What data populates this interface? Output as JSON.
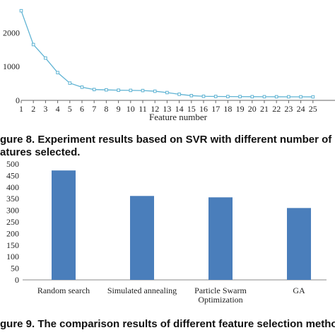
{
  "captions": {
    "fig8_line1": "gure 8. Experiment results based on SVR with different number of",
    "fig8_line2": "atures selected.",
    "fig9": "gure 9. The comparison results of different feature selection methods"
  },
  "chart_data": [
    {
      "type": "line",
      "title": "",
      "xlabel": "Feature number",
      "ylabel": "",
      "x": [
        1,
        2,
        3,
        4,
        5,
        6,
        7,
        8,
        9,
        10,
        11,
        12,
        13,
        14,
        15,
        16,
        17,
        18,
        19,
        20,
        21,
        22,
        23,
        24,
        25
      ],
      "y_ticks": [
        0,
        1000,
        2000
      ],
      "ylim": [
        0,
        2800
      ],
      "series": [
        {
          "values": [
            2650,
            1650,
            1250,
            820,
            510,
            390,
            320,
            310,
            300,
            295,
            290,
            270,
            230,
            180,
            140,
            120,
            115,
            112,
            110,
            108,
            107,
            106,
            105,
            104,
            103
          ]
        }
      ],
      "color": "#5fb3d3",
      "grid": false
    },
    {
      "type": "bar",
      "title": "",
      "xlabel": "",
      "ylabel": "",
      "categories": [
        "Random search",
        "Simulated annealing",
        [
          "Particle Swarm",
          "Optimization"
        ],
        "GA"
      ],
      "values": [
        472,
        362,
        356,
        310
      ],
      "ylim": [
        0,
        500
      ],
      "y_ticks": [
        0,
        50,
        100,
        150,
        200,
        250,
        300,
        350,
        400,
        450,
        500
      ],
      "color": "#4a7ebb",
      "grid": false
    }
  ]
}
